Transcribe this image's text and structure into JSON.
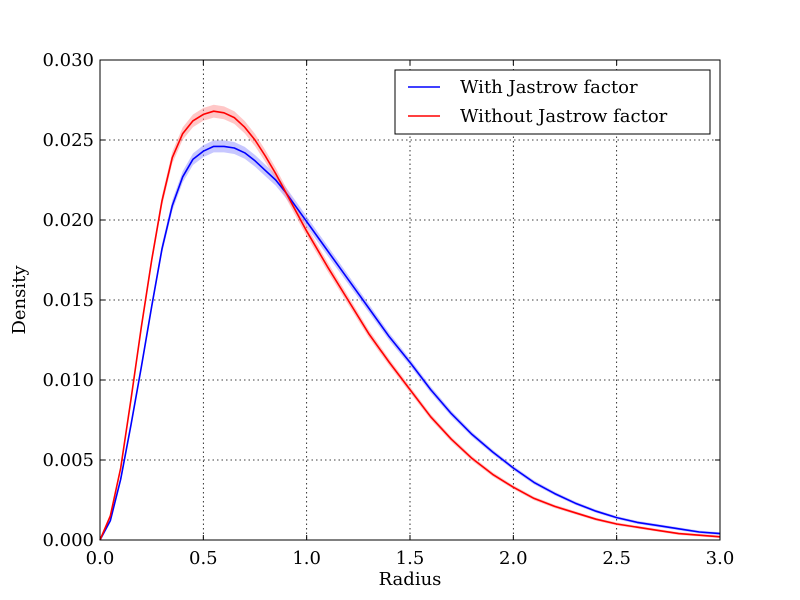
{
  "chart_data": {
    "type": "line",
    "title": "",
    "xlabel": "Radius",
    "ylabel": "Density",
    "xlim": [
      0.0,
      3.0
    ],
    "ylim": [
      0.0,
      0.03
    ],
    "grid": true,
    "legend_position": "top-right",
    "x_ticks": [
      "0.0",
      "0.5",
      "1.0",
      "1.5",
      "2.0",
      "2.5",
      "3.0"
    ],
    "y_ticks": [
      "0.000",
      "0.005",
      "0.010",
      "0.015",
      "0.020",
      "0.025",
      "0.030"
    ],
    "x": [
      0.0,
      0.05,
      0.1,
      0.15,
      0.2,
      0.25,
      0.3,
      0.35,
      0.4,
      0.45,
      0.5,
      0.55,
      0.6,
      0.65,
      0.7,
      0.75,
      0.8,
      0.85,
      0.9,
      0.95,
      1.0,
      1.1,
      1.2,
      1.3,
      1.4,
      1.5,
      1.6,
      1.7,
      1.8,
      1.9,
      2.0,
      2.1,
      2.2,
      2.3,
      2.4,
      2.5,
      2.6,
      2.7,
      2.8,
      2.9,
      3.0
    ],
    "series": [
      {
        "name": "With Jastrow factor",
        "color": "#0000ff",
        "band_color": "#9999ff",
        "values": [
          0.0,
          0.0012,
          0.0038,
          0.0072,
          0.0108,
          0.0146,
          0.0182,
          0.0209,
          0.0227,
          0.0238,
          0.0243,
          0.0246,
          0.0246,
          0.0245,
          0.0242,
          0.0237,
          0.0231,
          0.0225,
          0.0217,
          0.0208,
          0.0199,
          0.0181,
          0.0163,
          0.0145,
          0.0127,
          0.0111,
          0.0094,
          0.0079,
          0.0066,
          0.0055,
          0.0045,
          0.0036,
          0.0029,
          0.0023,
          0.0018,
          0.0014,
          0.0011,
          0.0009,
          0.0007,
          0.0005,
          0.0004
        ]
      },
      {
        "name": "Without Jastrow factor",
        "color": "#ff0000",
        "band_color": "#ff9999",
        "values": [
          0.0,
          0.0015,
          0.0045,
          0.0088,
          0.0133,
          0.0175,
          0.0212,
          0.0239,
          0.0254,
          0.0262,
          0.0266,
          0.0268,
          0.0267,
          0.0264,
          0.0258,
          0.025,
          0.024,
          0.0229,
          0.0217,
          0.0205,
          0.0193,
          0.0171,
          0.015,
          0.0129,
          0.0111,
          0.0094,
          0.0077,
          0.0063,
          0.0051,
          0.0041,
          0.0033,
          0.0026,
          0.0021,
          0.0017,
          0.0013,
          0.001,
          0.0008,
          0.0006,
          0.0004,
          0.0003,
          0.0002
        ]
      }
    ]
  }
}
